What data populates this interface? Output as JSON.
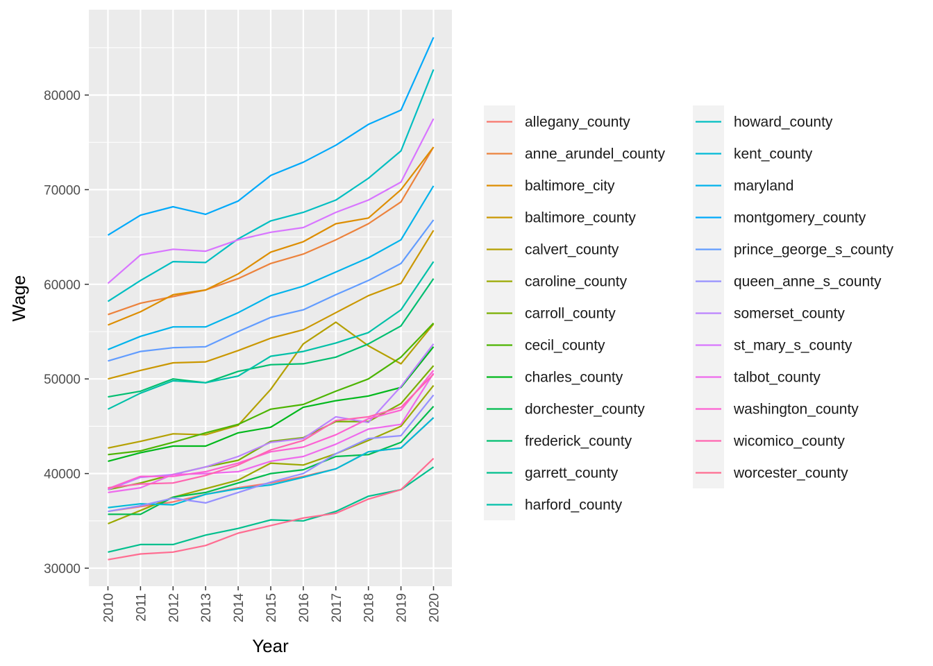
{
  "chart_data": {
    "type": "line",
    "title": "",
    "xlabel": "Year",
    "ylabel": "Wage",
    "x": [
      2010,
      2011,
      2012,
      2013,
      2014,
      2015,
      2016,
      2017,
      2018,
      2019,
      2020
    ],
    "ylim": [
      28500,
      87500
    ],
    "yticks": [
      30000,
      40000,
      50000,
      60000,
      70000,
      80000
    ],
    "yticklabels": [
      "30000",
      "40000",
      "50000",
      "60000",
      "70000",
      "80000"
    ],
    "xticklabels": [
      "2010",
      "2011",
      "2012",
      "2013",
      "2014",
      "2015",
      "2016",
      "2017",
      "2018",
      "2019",
      "2020"
    ],
    "grid": true,
    "legend_position": "right",
    "legend_columns": 2,
    "series": [
      {
        "name": "allegany_county",
        "color": "#F8766D",
        "values": [
          36000,
          36500,
          37000,
          37800,
          38500,
          39000,
          39700,
          40500,
          42300,
          42700,
          45900
        ]
      },
      {
        "name": "anne_arundel_county",
        "color": "#EC823C",
        "values": [
          56800,
          58000,
          58700,
          59400,
          60600,
          62200,
          63200,
          64700,
          66400,
          68700,
          74500
        ]
      },
      {
        "name": "baltimore_city",
        "color": "#DD8D00",
        "values": [
          55700,
          57100,
          58900,
          59400,
          61100,
          63400,
          64500,
          66400,
          67000,
          70000,
          74500
        ]
      },
      {
        "name": "baltimore_county",
        "color": "#CA9700",
        "values": [
          50000,
          50900,
          51700,
          51800,
          53000,
          54300,
          55200,
          57000,
          58800,
          60100,
          65700
        ]
      },
      {
        "name": "calvert_county",
        "color": "#B4A000",
        "values": [
          42700,
          43400,
          44200,
          44100,
          45100,
          48900,
          53700,
          56000,
          53500,
          51600,
          55800
        ]
      },
      {
        "name": "caroline_county",
        "color": "#9AA800",
        "values": [
          34700,
          36100,
          37500,
          38400,
          39300,
          41100,
          40900,
          42100,
          43500,
          45000,
          49300
        ]
      },
      {
        "name": "carroll_county",
        "color": "#7AAE00",
        "values": [
          38300,
          39000,
          39900,
          40700,
          41400,
          43400,
          43800,
          45500,
          45500,
          47400,
          51400
        ]
      },
      {
        "name": "cecil_county",
        "color": "#4CB400",
        "values": [
          42000,
          42400,
          43300,
          44300,
          45200,
          46800,
          47300,
          48700,
          50000,
          52300,
          55900
        ]
      },
      {
        "name": "charles_county",
        "color": "#00B81B",
        "values": [
          41300,
          42200,
          42900,
          42900,
          44300,
          44900,
          47000,
          47700,
          48200,
          49100,
          53400
        ]
      },
      {
        "name": "dorchester_county",
        "color": "#00BB4E",
        "values": [
          35700,
          35700,
          37500,
          38000,
          39000,
          40000,
          40400,
          41800,
          42000,
          43300,
          47100
        ]
      },
      {
        "name": "frederick_county",
        "color": "#00BE70",
        "values": [
          48100,
          48700,
          50000,
          49600,
          50800,
          51500,
          51600,
          52300,
          53700,
          55600,
          60600
        ]
      },
      {
        "name": "garrett_county",
        "color": "#00BF8D",
        "values": [
          31700,
          32500,
          32500,
          33500,
          34200,
          35100,
          35000,
          36000,
          37600,
          38300,
          40700
        ]
      },
      {
        "name": "harford_county",
        "color": "#00C0A8",
        "values": [
          46800,
          48500,
          49800,
          49600,
          50300,
          52400,
          52900,
          53800,
          54900,
          57300,
          62400
        ]
      },
      {
        "name": "howard_county",
        "color": "#00BEC1",
        "values": [
          58200,
          60400,
          62400,
          62300,
          64800,
          66700,
          67600,
          68900,
          71200,
          74100,
          82700
        ]
      },
      {
        "name": "kent_county",
        "color": "#00BAD7",
        "values": [
          36400,
          36800,
          36700,
          37800,
          38400,
          38800,
          39600,
          40500,
          42300,
          42700,
          45900
        ]
      },
      {
        "name": "maryland",
        "color": "#00B3EB",
        "values": [
          53100,
          54500,
          55500,
          55500,
          57000,
          58800,
          59800,
          61300,
          62800,
          64700,
          70400
        ]
      },
      {
        "name": "montgomery_county",
        "color": "#00A9FA",
        "values": [
          65200,
          67300,
          68200,
          67400,
          68800,
          71500,
          72900,
          74700,
          76900,
          78400,
          86100
        ]
      },
      {
        "name": "prince_george_s_county",
        "color": "#619CFF",
        "values": [
          51900,
          52900,
          53300,
          53400,
          55000,
          56500,
          57300,
          58900,
          60400,
          62200,
          66800
        ]
      },
      {
        "name": "queen_anne_s_county",
        "color": "#9590FF",
        "values": [
          36000,
          36600,
          37400,
          36900,
          38000,
          39100,
          40000,
          42100,
          43700,
          44000,
          48300
        ]
      },
      {
        "name": "somerset_county",
        "color": "#BB83FF",
        "values": [
          38300,
          39600,
          39900,
          40700,
          41800,
          43300,
          43700,
          46000,
          45400,
          49200,
          53700
        ]
      },
      {
        "name": "st_mary_s_county",
        "color": "#D875FF",
        "values": [
          60100,
          63100,
          63700,
          63500,
          64700,
          65500,
          66000,
          67600,
          68900,
          70800,
          77500
        ]
      },
      {
        "name": "talbot_county",
        "color": "#EE6AEC",
        "values": [
          38000,
          38500,
          39900,
          40000,
          40200,
          41300,
          41800,
          43100,
          44700,
          45200,
          50600
        ]
      },
      {
        "name": "washington_county",
        "color": "#FD61D3",
        "values": [
          38400,
          39700,
          39700,
          40200,
          41100,
          42300,
          42800,
          44100,
          45800,
          46700,
          50900
        ]
      },
      {
        "name": "wicomico_county",
        "color": "#FF64B0",
        "values": [
          38500,
          38900,
          39000,
          39800,
          40900,
          42500,
          43500,
          45600,
          46000,
          47000,
          50500
        ]
      },
      {
        "name": "worcester_county",
        "color": "#FF6C91",
        "values": [
          30900,
          31500,
          31700,
          32400,
          33700,
          34500,
          35300,
          35800,
          37300,
          38300,
          41600
        ]
      }
    ]
  }
}
